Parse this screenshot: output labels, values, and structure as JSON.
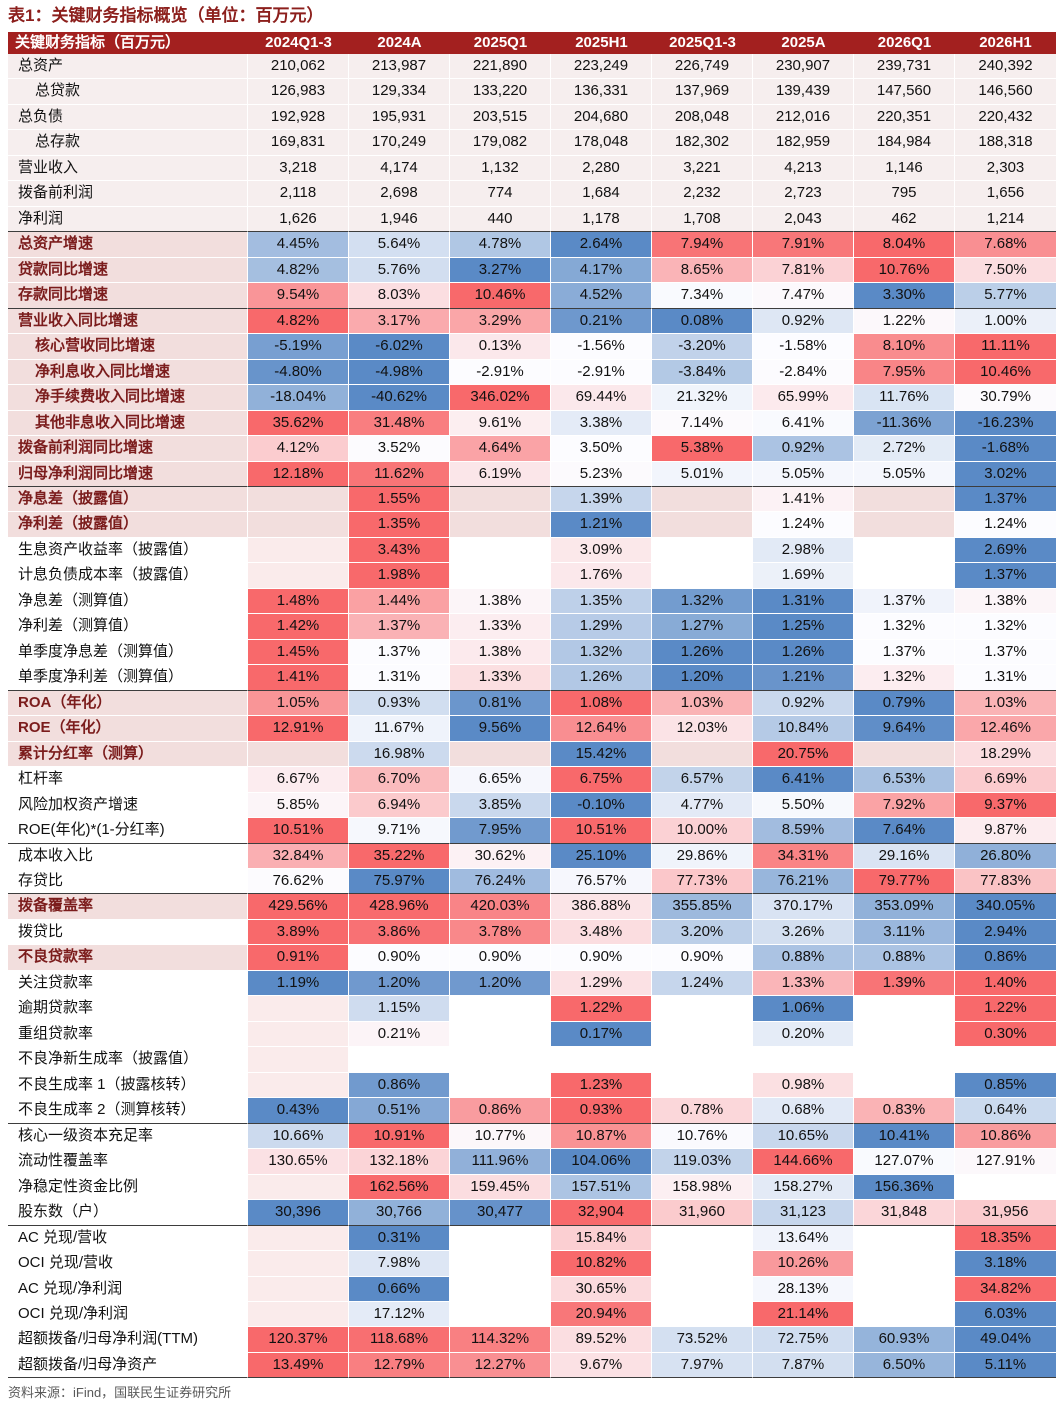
{
  "title": "表1：关键财务指标概览（单位：百万元）",
  "source": "资料来源：iFind，国联民生证券研究所",
  "colors": {
    "header_bg": "#A3201F",
    "header_text": "#FFFFFF",
    "key_label_text": "#7B1C1C",
    "key_row_bg": "#F2DEDD",
    "top_section_bg": "#F6EEEE",
    "empty_first_col_bg": "#FAEBEB",
    "scale_max": "#F8696B",
    "scale_mid": "#FCFCFF",
    "scale_min": "#5A8AC6"
  },
  "table": {
    "corner_label": "关键财务指标（百万元）",
    "columns": [
      "2024Q1-3",
      "2024A",
      "2025Q1",
      "2025H1",
      "2025Q1-3",
      "2025A",
      "2026Q1",
      "2026H1"
    ],
    "rows": [
      {
        "label": "总资产",
        "shaded": true,
        "heatmap": false,
        "values": [
          "210,062",
          "213,987",
          "221,890",
          "223,249",
          "226,749",
          "230,907",
          "239,731",
          "240,392"
        ]
      },
      {
        "label": "总贷款",
        "indent": true,
        "shaded": true,
        "heatmap": false,
        "values": [
          "126,983",
          "129,334",
          "133,220",
          "136,331",
          "137,969",
          "139,439",
          "147,560",
          "146,560"
        ]
      },
      {
        "label": "总负债",
        "shaded": true,
        "heatmap": false,
        "values": [
          "192,928",
          "195,931",
          "203,515",
          "204,680",
          "208,048",
          "212,016",
          "220,351",
          "220,432"
        ]
      },
      {
        "label": "总存款",
        "indent": true,
        "shaded": true,
        "heatmap": false,
        "values": [
          "169,831",
          "170,249",
          "179,082",
          "178,048",
          "182,302",
          "182,959",
          "184,984",
          "188,318"
        ]
      },
      {
        "label": "营业收入",
        "shaded": true,
        "heatmap": false,
        "values": [
          "3,218",
          "4,174",
          "1,132",
          "2,280",
          "3,221",
          "4,213",
          "1,146",
          "2,303"
        ]
      },
      {
        "label": "拨备前利润",
        "shaded": true,
        "heatmap": false,
        "values": [
          "2,118",
          "2,698",
          "774",
          "1,684",
          "2,232",
          "2,723",
          "795",
          "1,656"
        ]
      },
      {
        "label": "净利润",
        "shaded": true,
        "heatmap": false,
        "section_end": true,
        "values": [
          "1,626",
          "1,946",
          "440",
          "1,178",
          "1,708",
          "2,043",
          "462",
          "1,214"
        ]
      },
      {
        "label": "总资产增速",
        "bold": true,
        "values": [
          "4.45%",
          "5.64%",
          "4.78%",
          "2.64%",
          "7.94%",
          "7.91%",
          "8.04%",
          "7.68%"
        ]
      },
      {
        "label": "贷款同比增速",
        "bold": true,
        "values": [
          "4.82%",
          "5.76%",
          "3.27%",
          "4.17%",
          "8.65%",
          "7.81%",
          "10.76%",
          "7.50%"
        ]
      },
      {
        "label": "存款同比增速",
        "bold": true,
        "section_end": true,
        "values": [
          "9.54%",
          "8.03%",
          "10.46%",
          "4.52%",
          "7.34%",
          "7.47%",
          "3.30%",
          "5.77%"
        ]
      },
      {
        "label": "营业收入同比增速",
        "bold": true,
        "values": [
          "4.82%",
          "3.17%",
          "3.29%",
          "0.21%",
          "0.08%",
          "0.92%",
          "1.22%",
          "1.00%"
        ]
      },
      {
        "label": "核心营收同比增速",
        "bold": true,
        "indent": true,
        "values": [
          "-5.19%",
          "-6.02%",
          "0.13%",
          "-1.56%",
          "-3.20%",
          "-1.58%",
          "8.10%",
          "11.11%"
        ]
      },
      {
        "label": "净利息收入同比增速",
        "bold": true,
        "indent": true,
        "values": [
          "-4.80%",
          "-4.98%",
          "-2.91%",
          "-2.91%",
          "-3.84%",
          "-2.84%",
          "7.95%",
          "10.46%"
        ]
      },
      {
        "label": "净手续费收入同比增速",
        "bold": true,
        "indent": true,
        "values": [
          "-18.04%",
          "-40.62%",
          "346.02%",
          "69.44%",
          "21.32%",
          "65.99%",
          "11.76%",
          "30.79%"
        ]
      },
      {
        "label": "其他非息收入同比增速",
        "bold": true,
        "indent": true,
        "values": [
          "35.62%",
          "31.48%",
          "9.61%",
          "3.38%",
          "7.14%",
          "6.41%",
          "-11.36%",
          "-16.23%"
        ]
      },
      {
        "label": "拨备前利润同比增速",
        "bold": true,
        "values": [
          "4.12%",
          "3.52%",
          "4.64%",
          "3.50%",
          "5.38%",
          "0.92%",
          "2.72%",
          "-1.68%"
        ]
      },
      {
        "label": "归母净利润同比增速",
        "bold": true,
        "section_end": true,
        "values": [
          "12.18%",
          "11.62%",
          "6.19%",
          "5.23%",
          "5.01%",
          "5.05%",
          "5.05%",
          "3.02%"
        ]
      },
      {
        "label": "净息差（披露值）",
        "bold": true,
        "values": [
          null,
          "1.55%",
          null,
          "1.39%",
          null,
          "1.41%",
          null,
          "1.37%"
        ]
      },
      {
        "label": "净利差（披露值）",
        "bold": true,
        "values": [
          null,
          "1.35%",
          null,
          "1.21%",
          null,
          "1.24%",
          null,
          "1.24%"
        ]
      },
      {
        "label": "生息资产收益率（披露值）",
        "values": [
          null,
          "3.43%",
          null,
          "3.09%",
          null,
          "2.98%",
          null,
          "2.69%"
        ]
      },
      {
        "label": "计息负债成本率（披露值）",
        "values": [
          null,
          "1.98%",
          null,
          "1.76%",
          null,
          "1.69%",
          null,
          "1.37%"
        ]
      },
      {
        "label": "净息差（测算值）",
        "values": [
          "1.48%",
          "1.44%",
          "1.38%",
          "1.35%",
          "1.32%",
          "1.31%",
          "1.37%",
          "1.38%"
        ]
      },
      {
        "label": "净利差（测算值）",
        "values": [
          "1.42%",
          "1.37%",
          "1.33%",
          "1.29%",
          "1.27%",
          "1.25%",
          "1.32%",
          "1.32%"
        ]
      },
      {
        "label": "单季度净息差（测算值）",
        "values": [
          "1.45%",
          "1.37%",
          "1.38%",
          "1.32%",
          "1.26%",
          "1.26%",
          "1.37%",
          "1.37%"
        ]
      },
      {
        "label": "单季度净利差（测算值）",
        "section_end": true,
        "values": [
          "1.41%",
          "1.31%",
          "1.33%",
          "1.26%",
          "1.20%",
          "1.21%",
          "1.32%",
          "1.31%"
        ]
      },
      {
        "label": "ROA（年化）",
        "bold": true,
        "values": [
          "1.05%",
          "0.93%",
          "0.81%",
          "1.08%",
          "1.03%",
          "0.92%",
          "0.79%",
          "1.03%"
        ]
      },
      {
        "label": "ROE（年化）",
        "bold": true,
        "values": [
          "12.91%",
          "11.67%",
          "9.56%",
          "12.64%",
          "12.03%",
          "10.84%",
          "9.64%",
          "12.46%"
        ]
      },
      {
        "label": "累计分红率（测算）",
        "bold": true,
        "values": [
          null,
          "16.98%",
          null,
          "15.42%",
          null,
          "20.75%",
          null,
          "18.29%"
        ]
      },
      {
        "label": "杠杆率",
        "values": [
          "6.67%",
          "6.70%",
          "6.65%",
          "6.75%",
          "6.57%",
          "6.41%",
          "6.53%",
          "6.69%"
        ]
      },
      {
        "label": "风险加权资产增速",
        "values": [
          "5.85%",
          "6.94%",
          "3.85%",
          "-0.10%",
          "4.77%",
          "5.50%",
          "7.92%",
          "9.37%"
        ]
      },
      {
        "label": "ROE(年化)*(1-分红率)",
        "section_end": true,
        "values": [
          "10.51%",
          "9.71%",
          "7.95%",
          "10.51%",
          "10.00%",
          "8.59%",
          "7.64%",
          "9.87%"
        ]
      },
      {
        "label": "成本收入比",
        "values": [
          "32.84%",
          "35.22%",
          "30.62%",
          "25.10%",
          "29.86%",
          "34.31%",
          "29.16%",
          "26.80%"
        ]
      },
      {
        "label": "存贷比",
        "section_end": true,
        "values": [
          "76.62%",
          "75.97%",
          "76.24%",
          "76.57%",
          "77.73%",
          "76.21%",
          "79.77%",
          "77.83%"
        ]
      },
      {
        "label": "拨备覆盖率",
        "bold": true,
        "values": [
          "429.56%",
          "428.96%",
          "420.03%",
          "386.88%",
          "355.85%",
          "370.17%",
          "353.09%",
          "340.05%"
        ]
      },
      {
        "label": "拨贷比",
        "values": [
          "3.89%",
          "3.86%",
          "3.78%",
          "3.48%",
          "3.20%",
          "3.26%",
          "3.11%",
          "2.94%"
        ]
      },
      {
        "label": "不良贷款率",
        "bold": true,
        "values": [
          "0.91%",
          "0.90%",
          "0.90%",
          "0.90%",
          "0.90%",
          "0.88%",
          "0.88%",
          "0.86%"
        ]
      },
      {
        "label": "关注贷款率",
        "values": [
          "1.19%",
          "1.20%",
          "1.20%",
          "1.29%",
          "1.24%",
          "1.33%",
          "1.39%",
          "1.40%"
        ]
      },
      {
        "label": "逾期贷款率",
        "values": [
          null,
          "1.15%",
          null,
          "1.22%",
          null,
          "1.06%",
          null,
          "1.22%"
        ]
      },
      {
        "label": "重组贷款率",
        "values": [
          null,
          "0.21%",
          null,
          "0.17%",
          null,
          "0.20%",
          null,
          "0.30%"
        ]
      },
      {
        "label": "不良净新生成率（披露值）",
        "values": [
          null,
          null,
          null,
          null,
          null,
          null,
          null,
          null
        ]
      },
      {
        "label": "不良生成率 1（披露核转）",
        "values": [
          null,
          "0.86%",
          null,
          "1.23%",
          null,
          "0.98%",
          null,
          "0.85%"
        ]
      },
      {
        "label": "不良生成率 2（测算核转）",
        "section_end": true,
        "values": [
          "0.43%",
          "0.51%",
          "0.86%",
          "0.93%",
          "0.78%",
          "0.68%",
          "0.83%",
          "0.64%"
        ]
      },
      {
        "label": "核心一级资本充足率",
        "values": [
          "10.66%",
          "10.91%",
          "10.77%",
          "10.87%",
          "10.76%",
          "10.65%",
          "10.41%",
          "10.86%"
        ]
      },
      {
        "label": "流动性覆盖率",
        "values": [
          "130.65%",
          "132.18%",
          "111.96%",
          "104.06%",
          "119.03%",
          "144.66%",
          "127.07%",
          "127.91%"
        ]
      },
      {
        "label": "净稳定性资金比例",
        "values": [
          null,
          "162.56%",
          "159.45%",
          "157.51%",
          "158.98%",
          "158.27%",
          "156.36%",
          null
        ]
      },
      {
        "label": "股东数（户）",
        "section_end": true,
        "values": [
          "30,396",
          "30,766",
          "30,477",
          "32,904",
          "31,960",
          "31,123",
          "31,848",
          "31,956"
        ]
      },
      {
        "label": "AC 兑现/营收",
        "values": [
          null,
          "0.31%",
          null,
          "15.84%",
          null,
          "13.64%",
          null,
          "18.35%"
        ]
      },
      {
        "label": "OCI 兑现/营收",
        "values": [
          null,
          "7.98%",
          null,
          "10.82%",
          null,
          "10.26%",
          null,
          "3.18%"
        ]
      },
      {
        "label": "AC 兑现/净利润",
        "values": [
          null,
          "0.66%",
          null,
          "30.65%",
          null,
          "28.13%",
          null,
          "34.82%"
        ]
      },
      {
        "label": "OCI 兑现/净利润",
        "values": [
          null,
          "17.12%",
          null,
          "20.94%",
          null,
          "21.14%",
          null,
          "6.03%"
        ]
      },
      {
        "label": "超额拨备/归母净利润(TTM)",
        "values": [
          "120.37%",
          "118.68%",
          "114.32%",
          "89.52%",
          "73.52%",
          "72.75%",
          "60.93%",
          "49.04%"
        ]
      },
      {
        "label": "超额拨备/归母净资产",
        "section_end": true,
        "values": [
          "13.49%",
          "12.79%",
          "12.27%",
          "9.67%",
          "7.97%",
          "7.87%",
          "6.50%",
          "5.11%"
        ]
      }
    ]
  }
}
